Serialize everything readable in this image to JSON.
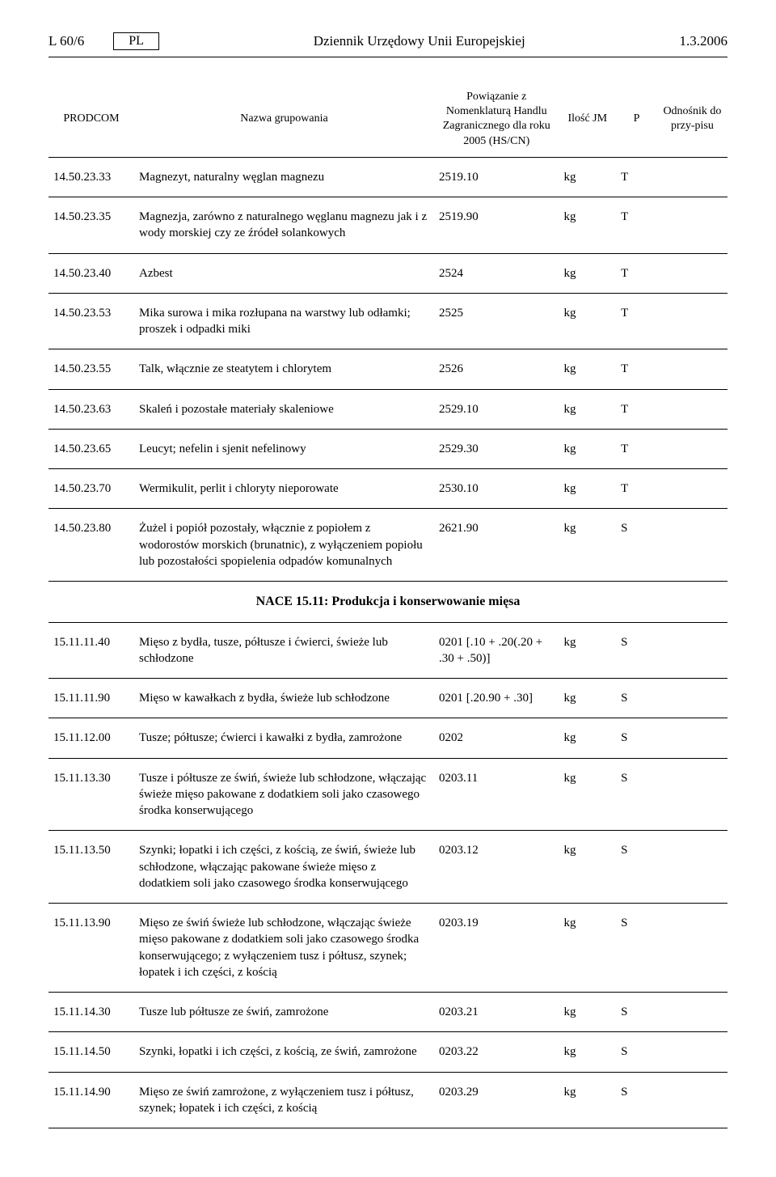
{
  "header": {
    "page_ref": "L 60/6",
    "lang": "PL",
    "title": "Dziennik Urzędowy Unii Europejskiej",
    "date": "1.3.2006"
  },
  "columns": {
    "prodcom": "PRODCOM",
    "name": "Nazwa grupowania",
    "hs": "Powiązanie z Nomenklaturą Handlu Zagranicznego dla roku 2005 (HS/CN)",
    "jm": "Ilość JM",
    "p": "P",
    "ref": "Odnośnik do przy-pisu"
  },
  "section_title": "NACE 15.11: Produkcja i konserwowanie mięsa",
  "rows_a": [
    {
      "code": "14.50.23.33",
      "name": "Magnezyt, naturalny węglan magnezu",
      "hs": "2519.10",
      "jm": "kg",
      "p": "T",
      "ref": ""
    },
    {
      "code": "14.50.23.35",
      "name": "Magnezja, zarówno z naturalnego węglanu magnezu jak i z wody morskiej czy ze źródeł solankowych",
      "hs": "2519.90",
      "jm": "kg",
      "p": "T",
      "ref": ""
    },
    {
      "code": "14.50.23.40",
      "name": "Azbest",
      "hs": "2524",
      "jm": "kg",
      "p": "T",
      "ref": ""
    },
    {
      "code": "14.50.23.53",
      "name": "Mika surowa i mika rozłupana na warstwy lub odłamki; proszek i odpadki miki",
      "hs": "2525",
      "jm": "kg",
      "p": "T",
      "ref": ""
    },
    {
      "code": "14.50.23.55",
      "name": "Talk, włącznie ze steatytem i chlorytem",
      "hs": "2526",
      "jm": "kg",
      "p": "T",
      "ref": ""
    },
    {
      "code": "14.50.23.63",
      "name": "Skaleń i pozostałe materiały skaleniowe",
      "hs": "2529.10",
      "jm": "kg",
      "p": "T",
      "ref": ""
    },
    {
      "code": "14.50.23.65",
      "name": "Leucyt; nefelin i sjenit nefelinowy",
      "hs": "2529.30",
      "jm": "kg",
      "p": "T",
      "ref": ""
    },
    {
      "code": "14.50.23.70",
      "name": "Wermikulit, perlit i chloryty nieporowate",
      "hs": "2530.10",
      "jm": "kg",
      "p": "T",
      "ref": ""
    },
    {
      "code": "14.50.23.80",
      "name": "Żużel i popiół pozostały, włącznie z popiołem z wodorostów morskich (brunatnic), z wyłączeniem popiołu lub pozostałości spopielenia odpadów komunalnych",
      "hs": "2621.90",
      "jm": "kg",
      "p": "S",
      "ref": ""
    }
  ],
  "rows_b": [
    {
      "code": "15.11.11.40",
      "name": "Mięso z bydła, tusze, półtusze i ćwierci, świeże lub schłodzone",
      "hs": "0201 [.10 + .20(.20 + .30 + .50)]",
      "jm": "kg",
      "p": "S",
      "ref": ""
    },
    {
      "code": "15.11.11.90",
      "name": "Mięso w kawałkach z bydła, świeże lub schłodzone",
      "hs": "0201 [.20.90 + .30]",
      "jm": "kg",
      "p": "S",
      "ref": ""
    },
    {
      "code": "15.11.12.00",
      "name": "Tusze; półtusze; ćwierci i kawałki z bydła, zamrożone",
      "hs": "0202",
      "jm": "kg",
      "p": "S",
      "ref": ""
    },
    {
      "code": "15.11.13.30",
      "name": "Tusze i półtusze ze świń, świeże lub schłodzone, włączając świeże mięso pakowane z dodatkiem soli jako czasowego środka konserwującego",
      "hs": "0203.11",
      "jm": "kg",
      "p": "S",
      "ref": ""
    },
    {
      "code": "15.11.13.50",
      "name": "Szynki; łopatki i ich części, z kością, ze świń, świeże lub schłodzone, włączając pakowane świeże mięso z dodatkiem soli jako czasowego środka konserwującego",
      "hs": "0203.12",
      "jm": "kg",
      "p": "S",
      "ref": ""
    },
    {
      "code": "15.11.13.90",
      "name": "Mięso ze świń świeże lub schłodzone, włączając świeże mięso pakowane z dodatkiem soli jako czasowego środka konserwującego; z wyłączeniem tusz i półtusz, szynek; łopatek i ich części, z kością",
      "hs": "0203.19",
      "jm": "kg",
      "p": "S",
      "ref": ""
    },
    {
      "code": "15.11.14.30",
      "name": "Tusze lub półtusze ze świń, zamrożone",
      "hs": "0203.21",
      "jm": "kg",
      "p": "S",
      "ref": ""
    },
    {
      "code": "15.11.14.50",
      "name": "Szynki, łopatki i ich części, z kością, ze świń, zamrożone",
      "hs": "0203.22",
      "jm": "kg",
      "p": "S",
      "ref": ""
    },
    {
      "code": "15.11.14.90",
      "name": "Mięso ze świń zamrożone, z wyłączeniem tusz i półtusz, szynek; łopatek i ich części, z kością",
      "hs": "0203.29",
      "jm": "kg",
      "p": "S",
      "ref": ""
    }
  ]
}
